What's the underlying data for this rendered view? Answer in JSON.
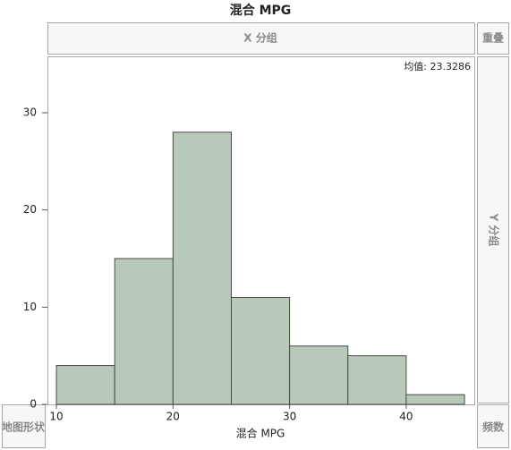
{
  "chart_data": {
    "type": "histogram",
    "title": "混合 MPG",
    "xlabel": "混合 MPG",
    "annotation": "均值: 23.3286",
    "bins": [
      10,
      15,
      20,
      25,
      30,
      35,
      40,
      45
    ],
    "counts": [
      4,
      15,
      28,
      11,
      6,
      5,
      1
    ],
    "color": "#b9c9b9",
    "xlim": [
      9.23,
      45.84
    ],
    "ylim": [
      0,
      35.8
    ],
    "xticks": [
      10,
      20,
      30,
      40
    ],
    "yticks": [
      0,
      10,
      20,
      30
    ]
  },
  "drop_zones": {
    "x_group": "X 分组",
    "overlay": "重叠",
    "y_group": "Y 分组",
    "map_shape": "地图形状",
    "frequency": "频数"
  }
}
